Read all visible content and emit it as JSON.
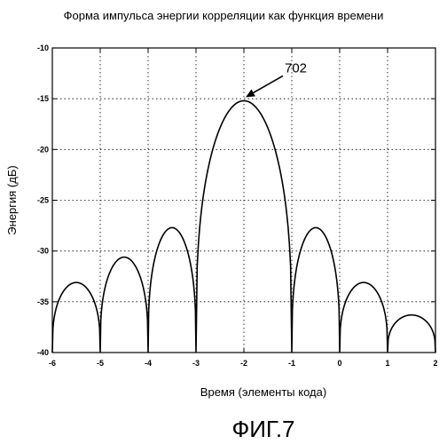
{
  "chart_data": {
    "type": "line",
    "title": "Форма импульса энергии корреляции как функция времени",
    "xlabel": "Время (элементы кода)",
    "ylabel": "Энергия (дБ)",
    "xlim": [
      -6,
      2
    ],
    "ylim": [
      -40,
      -10
    ],
    "x_ticks": [
      -6,
      -5,
      -4,
      -3,
      -2,
      -1,
      0,
      1,
      2
    ],
    "y_ticks": [
      -10,
      -15,
      -20,
      -25,
      -30,
      -35,
      -40
    ],
    "x_tick_labels": [
      "-6",
      "-5",
      "-4",
      "-3",
      "-2",
      "-1",
      "0",
      "1",
      "2"
    ],
    "y_tick_labels": [
      "-10",
      "-15",
      "-20",
      "-25",
      "-30",
      "-35",
      "-40"
    ],
    "grid": true,
    "grid_style": "dotted",
    "line_color": "#000000",
    "series": [
      {
        "lobes": [
          {
            "start": -6.0,
            "end": -5.0,
            "peak_x": -5.5,
            "peak_y": -33.1
          },
          {
            "start": -5.0,
            "end": -4.0,
            "peak_x": -4.5,
            "peak_y": -30.6
          },
          {
            "start": -4.0,
            "end": -3.0,
            "peak_x": -3.5,
            "peak_y": -27.7
          },
          {
            "start": -3.0,
            "end": -1.0,
            "peak_x": -2.0,
            "peak_y": -15.2
          },
          {
            "start": -1.0,
            "end": 0.0,
            "peak_x": -0.5,
            "peak_y": -27.7
          },
          {
            "start": 0.0,
            "end": 1.0,
            "peak_x": 0.5,
            "peak_y": -33.1
          },
          {
            "start": 1.0,
            "end": 2.0,
            "peak_x": 1.5,
            "peak_y": -36.3
          }
        ]
      }
    ],
    "annotations": [
      {
        "text": "702",
        "target_x": -2.0,
        "target_y": -15.2
      }
    ]
  },
  "figure_label": "ФИГ.7"
}
